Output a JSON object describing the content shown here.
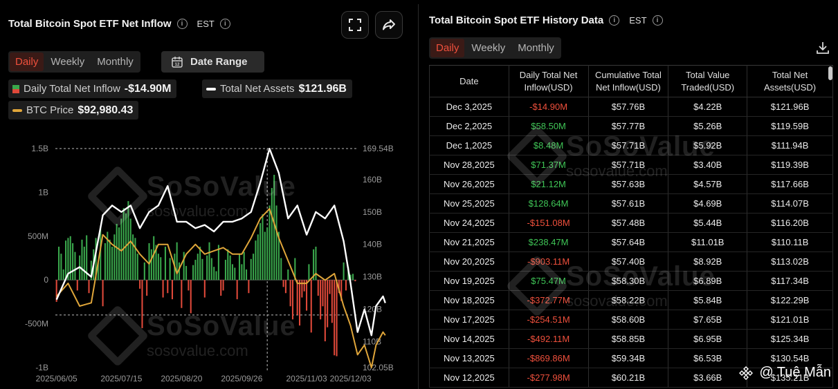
{
  "left": {
    "title": "Total Bitcoin Spot ETF Net Inflow",
    "timezone": "EST",
    "tabs": [
      "Daily",
      "Weekly",
      "Monthly"
    ],
    "active_tab": "Daily",
    "date_range_label": "Date Range",
    "legend": {
      "inflow_label": "Daily Total Net Inflow",
      "inflow_value": "-$14.90M",
      "assets_label": "Total Net Assets",
      "assets_value": "$121.96B",
      "btc_label": "BTC Price",
      "btc_value": "$92,980.43"
    },
    "watermark": {
      "name": "SoSoValue",
      "domain": "sosovalue.com"
    },
    "icons": {
      "expand": "expand-icon",
      "share": "share-icon",
      "calendar": "calendar-icon",
      "info": "info-icon"
    }
  },
  "chart_data": {
    "type": "bar",
    "title": "Total Bitcoin Spot ETF Net Inflow",
    "x_tick_labels": [
      "2025/06/05",
      "2025/07/15",
      "2025/08/20",
      "2025/09/26",
      "2025/11/03",
      "2025/12/03"
    ],
    "left_axis_ticks": [
      "1.5B",
      "1B",
      "500M",
      "0",
      "-500M",
      "-1B"
    ],
    "left_axis_range": [
      -1000,
      1500
    ],
    "right_axis_ticks": [
      "169.54B",
      "160B",
      "150B",
      "140B",
      "130B",
      "120B",
      "110B",
      "102.05B"
    ],
    "right_axis_range": [
      102.05,
      169.54
    ],
    "reference_lines": {
      "left_axis": -400,
      "right_axis": 169.54,
      "vertical_date": "2025/10/06"
    },
    "colors": {
      "inflow_positive": "#3aa84c",
      "inflow_negative": "#e0493a",
      "total_net_assets": "#ffffff",
      "btc_price": "#e0a63a"
    },
    "series": [
      {
        "name": "Daily Total Net Inflow",
        "unit": "USD millions",
        "values": [
          -250,
          380,
          300,
          120,
          450,
          480,
          500,
          420,
          320,
          -120,
          280,
          460,
          380,
          510,
          -150,
          220,
          350,
          480,
          200,
          600,
          -300,
          420,
          550,
          460,
          380,
          520,
          640,
          600,
          700,
          820,
          760,
          900,
          700,
          520,
          480,
          300,
          -100,
          -550,
          200,
          -180,
          420,
          350,
          500,
          400,
          300,
          260,
          -200,
          380,
          -150,
          250,
          -220,
          300,
          430,
          200,
          -320,
          320,
          160,
          -120,
          -380,
          170,
          230,
          300,
          380,
          240,
          -200,
          280,
          430,
          250,
          150,
          100,
          400,
          -180,
          -120,
          230,
          350,
          280,
          180,
          140,
          -220,
          290,
          180,
          320,
          120,
          -150,
          240,
          300,
          450,
          520,
          650,
          750,
          550,
          600,
          850,
          1050,
          1200,
          850,
          550,
          250,
          -80,
          -150,
          120,
          -300,
          -450,
          250,
          -400,
          -520,
          -200,
          -130,
          -350,
          180,
          -600,
          350,
          380,
          -180,
          -450,
          -300,
          -700,
          -540,
          -160,
          -490,
          -860,
          -870,
          -150,
          -240,
          200,
          -120,
          150,
          60,
          70,
          -15
        ],
        "note": "approximate, read off chart"
      },
      {
        "name": "Total Net Assets",
        "unit": "USD billions",
        "points": [
          [
            0,
            123
          ],
          [
            5,
            131
          ],
          [
            10,
            133
          ],
          [
            15,
            130
          ],
          [
            20,
            149
          ],
          [
            24,
            152
          ],
          [
            28,
            150
          ],
          [
            32,
            152
          ],
          [
            36,
            145
          ],
          [
            40,
            150
          ],
          [
            44,
            152
          ],
          [
            48,
            158
          ],
          [
            52,
            147
          ],
          [
            56,
            147
          ],
          [
            60,
            145
          ],
          [
            64,
            146
          ],
          [
            68,
            144
          ],
          [
            72,
            147
          ],
          [
            76,
            147
          ],
          [
            80,
            148
          ],
          [
            84,
            150
          ],
          [
            88,
            159
          ],
          [
            92,
            169.5
          ],
          [
            96,
            162
          ],
          [
            100,
            148
          ],
          [
            104,
            152
          ],
          [
            108,
            143
          ],
          [
            112,
            150
          ],
          [
            116,
            148
          ],
          [
            120,
            152
          ],
          [
            124,
            141
          ],
          [
            127,
            128
          ],
          [
            130,
            113
          ],
          [
            133,
            120
          ],
          [
            136,
            112
          ],
          [
            138,
            121
          ],
          [
            141,
            124
          ],
          [
            142,
            121.96
          ]
        ]
      },
      {
        "name": "BTC Price",
        "unit": "right-axis scale",
        "points": [
          [
            0,
            124
          ],
          [
            5,
            128
          ],
          [
            10,
            121
          ],
          [
            15,
            122
          ],
          [
            20,
            143
          ],
          [
            24,
            140
          ],
          [
            28,
            138
          ],
          [
            32,
            141
          ],
          [
            36,
            137
          ],
          [
            40,
            134
          ],
          [
            44,
            140
          ],
          [
            48,
            140
          ],
          [
            52,
            131
          ],
          [
            56,
            137
          ],
          [
            60,
            140
          ],
          [
            64,
            137
          ],
          [
            68,
            138
          ],
          [
            72,
            139
          ],
          [
            76,
            137
          ],
          [
            80,
            137
          ],
          [
            84,
            142
          ],
          [
            88,
            148
          ],
          [
            92,
            151
          ],
          [
            96,
            142
          ],
          [
            100,
            135
          ],
          [
            104,
            128
          ],
          [
            108,
            128
          ],
          [
            112,
            131
          ],
          [
            116,
            129
          ],
          [
            120,
            131
          ],
          [
            124,
            121
          ],
          [
            127,
            115
          ],
          [
            130,
            106
          ],
          [
            133,
            109
          ],
          [
            136,
            102.05
          ],
          [
            138,
            109
          ],
          [
            141,
            113
          ],
          [
            142,
            112
          ]
        ]
      }
    ]
  },
  "right": {
    "title": "Total Bitcoin Spot ETF History Data",
    "timezone": "EST",
    "tabs": [
      "Daily",
      "Weekly",
      "Monthly"
    ],
    "active_tab": "Daily",
    "columns": [
      "Date",
      "Daily Total Net Inflow(USD)",
      "Cumulative Total Net Inflow(USD)",
      "Total Value Traded(USD)",
      "Total Net Assets(USD)"
    ],
    "rows": [
      [
        "Dec 3,2025",
        "-$14.90M",
        "$57.76B",
        "$4.22B",
        "$121.96B"
      ],
      [
        "Dec 2,2025",
        "$58.50M",
        "$57.77B",
        "$5.26B",
        "$119.59B"
      ],
      [
        "Dec 1,2025",
        "$8.48M",
        "$57.71B",
        "$5.92B",
        "$111.94B"
      ],
      [
        "Nov 28,2025",
        "$71.37M",
        "$57.71B",
        "$3.40B",
        "$119.39B"
      ],
      [
        "Nov 26,2025",
        "$21.12M",
        "$57.63B",
        "$4.57B",
        "$117.66B"
      ],
      [
        "Nov 25,2025",
        "$128.64M",
        "$57.61B",
        "$4.69B",
        "$114.07B"
      ],
      [
        "Nov 24,2025",
        "-$151.08M",
        "$57.48B",
        "$5.44B",
        "$116.20B"
      ],
      [
        "Nov 21,2025",
        "$238.47M",
        "$57.64B",
        "$11.01B",
        "$110.11B"
      ],
      [
        "Nov 20,2025",
        "-$903.11M",
        "$57.40B",
        "$8.92B",
        "$113.02B"
      ],
      [
        "Nov 19,2025",
        "$75.47M",
        "$58.30B",
        "$6.89B",
        "$117.34B"
      ],
      [
        "Nov 18,2025",
        "-$372.77M",
        "$58.22B",
        "$5.84B",
        "$122.29B"
      ],
      [
        "Nov 17,2025",
        "-$254.51M",
        "$58.60B",
        "$7.65B",
        "$121.01B"
      ],
      [
        "Nov 14,2025",
        "-$492.11M",
        "$58.85B",
        "$6.95B",
        "$125.34B"
      ],
      [
        "Nov 13,2025",
        "-$869.86M",
        "$59.34B",
        "$6.53B",
        "$130.54B"
      ],
      [
        "Nov 12,2025",
        "-$277.98M",
        "$60.21B",
        "$3.66B",
        "$135.21B"
      ]
    ],
    "download_icon": "download-icon"
  },
  "credit": {
    "text": "@ Tuệ Mẫn",
    "icon": "binance-icon"
  }
}
